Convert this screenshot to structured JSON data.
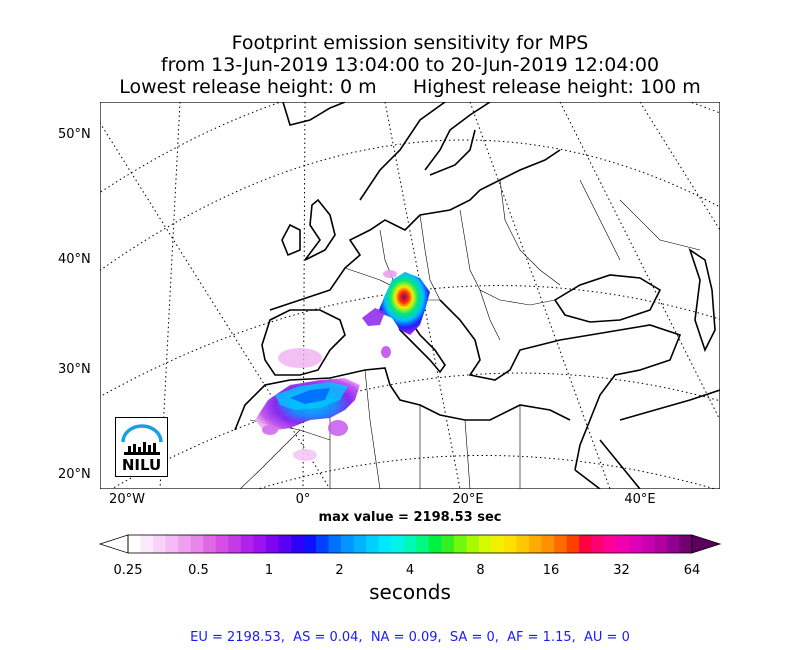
{
  "title": {
    "line1": "Footprint emission sensitivity for MPS",
    "line2": "from 13-Jun-2019 13:04:00 to 20-Jun-2019 12:04:00",
    "line3": "Lowest release height: 0 m      Highest release height: 100 m"
  },
  "map": {
    "latitude_labels": [
      "50°N",
      "40°N",
      "30°N",
      "20°N"
    ],
    "longitude_labels": [
      "20°W",
      "0°",
      "20°E",
      "40°E"
    ],
    "max_value_text": "max value = 2198.53 sec",
    "logo_text": "NILU"
  },
  "colorbar": {
    "tick_labels": [
      "0.25",
      "0.5",
      "1",
      "2",
      "4",
      "8",
      "16",
      "32",
      "64"
    ],
    "label": "seconds",
    "colors": [
      "#ffffff",
      "#fde9fd",
      "#f9d2f9",
      "#f5b9f5",
      "#efa0ef",
      "#e986e9",
      "#e06ae6",
      "#d54fe6",
      "#c53ae8",
      "#b322ec",
      "#9c12ee",
      "#7d06f2",
      "#5a00f5",
      "#2e00f7",
      "#1010ff",
      "#0040ff",
      "#0070ff",
      "#0095ff",
      "#00b4ff",
      "#00d0ff",
      "#00e8ff",
      "#00f5e8",
      "#00f8b8",
      "#00fa80",
      "#00f040",
      "#30f020",
      "#70f810",
      "#a8fa00",
      "#d4fa00",
      "#f2f200",
      "#ffe000",
      "#ffc800",
      "#ffac00",
      "#ff9000",
      "#ff6a00",
      "#ff4000",
      "#ff0040",
      "#ff0070",
      "#ff0098",
      "#f000b0",
      "#dc00b8",
      "#c800b0",
      "#b000a0",
      "#900090",
      "#700070"
    ]
  },
  "footer": "EU = 2198.53,  AS = 0.04,  NA = 0.09,  SA = 0,  AF = 1.15,  AU = 0"
}
